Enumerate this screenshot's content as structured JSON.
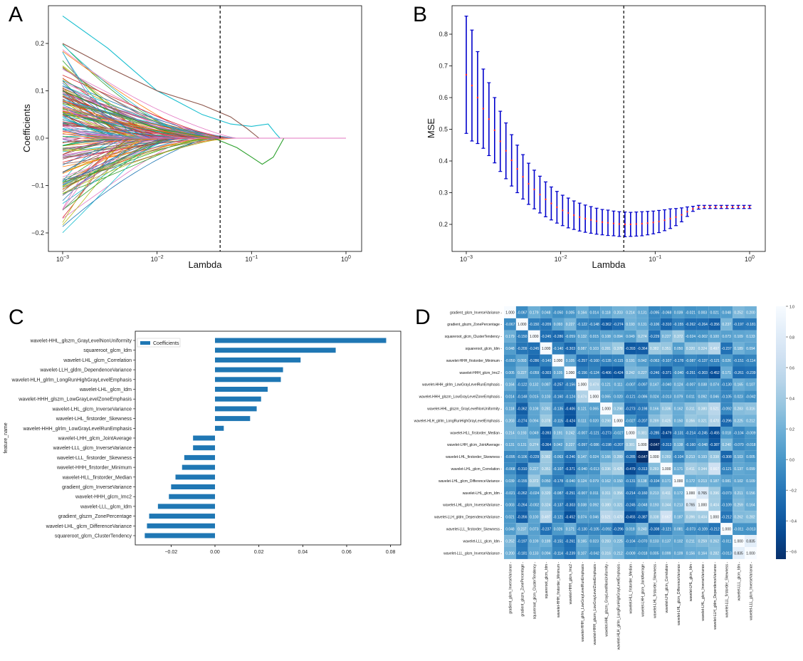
{
  "panel_labels": [
    "A",
    "B",
    "C",
    "D"
  ],
  "chart_data": [
    {
      "panel": "A",
      "type": "line",
      "xscale": "log",
      "xlabel": "Lambda",
      "ylabel": "Coefficients",
      "xlim": [
        0.001,
        1
      ],
      "ylim": [
        -0.22,
        0.26
      ],
      "xticks": [
        "10^-3",
        "10^-2",
        "10^-1",
        "10^0"
      ],
      "yticks": [
        "-0.2",
        "-0.1",
        "0.0",
        "0.1",
        "0.2"
      ],
      "vline_lambda": 0.0465,
      "series_count": 180,
      "highlight_series": [
        {
          "color": "#17becf",
          "points": [
            [
              0.001,
              0.258
            ],
            [
              0.003,
              0.19
            ],
            [
              0.01,
              0.1
            ],
            [
              0.03,
              0.05
            ],
            [
              0.06,
              0.03
            ],
            [
              0.1,
              0.025
            ],
            [
              0.15,
              0.03
            ],
            [
              0.18,
              0.01
            ],
            [
              0.2,
              0.0
            ]
          ]
        },
        {
          "color": "#2ca02c",
          "points": [
            [
              0.001,
              0.1
            ],
            [
              0.003,
              0.06
            ],
            [
              0.01,
              0.02
            ],
            [
              0.04,
              0.0
            ],
            [
              0.07,
              -0.02
            ],
            [
              0.1,
              -0.04
            ],
            [
              0.13,
              -0.055
            ],
            [
              0.17,
              -0.04
            ],
            [
              0.22,
              0.0
            ]
          ]
        },
        {
          "color": "#8c564b",
          "points": [
            [
              0.001,
              0.2
            ],
            [
              0.003,
              0.15
            ],
            [
              0.01,
              0.1
            ],
            [
              0.03,
              0.07
            ],
            [
              0.06,
              0.045
            ],
            [
              0.09,
              0.02
            ],
            [
              0.12,
              0.0
            ]
          ]
        },
        {
          "color": "#e377c2",
          "points": [
            [
              0.001,
              0.0
            ],
            [
              1,
              0.0
            ]
          ]
        }
      ]
    },
    {
      "panel": "B",
      "type": "line",
      "xscale": "log",
      "xlabel": "Lambda",
      "ylabel": "MSE",
      "xlim": [
        0.001,
        1
      ],
      "ylim": [
        0.15,
        0.88
      ],
      "xticks": [
        "10^-3",
        "10^-2",
        "10^-1",
        "10^0"
      ],
      "yticks": [
        "0.2",
        "0.3",
        "0.4",
        "0.5",
        "0.6",
        "0.7",
        "0.8"
      ],
      "vline_lambda": 0.0465,
      "lambda_log10_start": -3,
      "lambda_log10_step": 0.06,
      "mse": [
        0.672,
        0.638,
        0.6,
        0.565,
        0.532,
        0.497,
        0.462,
        0.432,
        0.402,
        0.375,
        0.35,
        0.328,
        0.31,
        0.294,
        0.279,
        0.266,
        0.254,
        0.244,
        0.236,
        0.229,
        0.223,
        0.218,
        0.214,
        0.21,
        0.207,
        0.205,
        0.203,
        0.201,
        0.2,
        0.2,
        0.201,
        0.202,
        0.204,
        0.206,
        0.209,
        0.213,
        0.218,
        0.223,
        0.23,
        0.24,
        0.249,
        0.254,
        0.255,
        0.255,
        0.255,
        0.255,
        0.255,
        0.255,
        0.255,
        0.255,
        0.255
      ],
      "std": [
        0.185,
        0.175,
        0.145,
        0.125,
        0.115,
        0.103,
        0.095,
        0.088,
        0.081,
        0.075,
        0.07,
        0.065,
        0.061,
        0.058,
        0.055,
        0.052,
        0.05,
        0.048,
        0.047,
        0.045,
        0.044,
        0.043,
        0.042,
        0.041,
        0.04,
        0.04,
        0.039,
        0.039,
        0.039,
        0.038,
        0.038,
        0.038,
        0.037,
        0.036,
        0.035,
        0.033,
        0.031,
        0.027,
        0.022,
        0.015,
        0.008,
        0.006,
        0.005,
        0.005,
        0.005,
        0.005,
        0.005,
        0.005,
        0.005,
        0.005,
        0.005
      ]
    },
    {
      "panel": "C",
      "type": "bar",
      "orientation": "horizontal",
      "ylabel": "feature_name",
      "legend": "Coefficients",
      "xlim": [
        -0.04,
        0.083
      ],
      "xticks": [
        "-0.02",
        "0.00",
        "0.02",
        "0.04",
        "0.06",
        "0.08"
      ],
      "categories": [
        "wavelet-HHL_glszm_GrayLevelNonUniformity",
        "squareroot_glcm_Idm",
        "wavelet-LHL_glcm_Correlation",
        "wavelet-LLH_gldm_DependenceVariance",
        "wavelet-HLH_glrlm_LongRunHighGrayLevelEmphasis",
        "wavelet-LHL_glcm_Idm",
        "wavelet-HHH_glszm_LowGrayLevelZoneEmphasis",
        "wavelet-LHL_glcm_InverseVariance",
        "wavelet-LHL_firstorder_Skewness",
        "wavelet-HHH_glrlm_LowGrayLevelRunEmphasis",
        "wavelet-LHH_glcm_JointAverage",
        "wavelet-LLL_glcm_InverseVariance",
        "wavelet-LLL_firstorder_Skewness",
        "wavelet-HHH_firstorder_Minimum",
        "wavelet-HLL_firstorder_Median",
        "gradient_glcm_InverseVariance",
        "wavelet-HHH_glcm_Imc2",
        "wavelet-LLL_glcm_Idm",
        "gradient_glszm_ZonePercentage",
        "wavelet-LHL_glcm_DifferenceVariance",
        "squareroot_glcm_ClusterTendency"
      ],
      "values": [
        0.078,
        0.055,
        0.039,
        0.031,
        0.03,
        0.024,
        0.021,
        0.019,
        0.016,
        0.004,
        -0.01,
        -0.01,
        -0.014,
        -0.015,
        -0.018,
        -0.02,
        -0.021,
        -0.026,
        -0.03,
        -0.031,
        -0.032
      ]
    },
    {
      "panel": "D",
      "type": "heatmap",
      "labels": [
        "gradient_glcm_InverseVariance",
        "gradient_glszm_ZonePercentage",
        "squareroot_glcm_ClusterTendency",
        "squareroot_glcm_Idm",
        "wavelet-HHH_firstorder_Minimum",
        "wavelet-HHH_glcm_Imc2",
        "wavelet-HHH_glrlm_LowGrayLevelRunEmphasis",
        "wavelet-HHH_glszm_LowGrayLevelZoneEmphasis",
        "wavelet-HHL_glszm_GrayLevelNonUniformity",
        "wavelet-HLH_glrlm_LongRunHighGrayLevelEmphasis",
        "wavelet-HLL_firstorder_Median",
        "wavelet-LHH_glcm_JointAverage",
        "wavelet-LHL_firstorder_Skewness",
        "wavelet-LHL_glcm_Correlation",
        "wavelet-LHL_glcm_DifferenceVariance",
        "wavelet-LHL_glcm_Idm",
        "wavelet-LHL_glcm_InverseVariance",
        "wavelet-LLH_gldm_DependenceVariance",
        "wavelet-LLL_firstorder_Skewness",
        "wavelet-LLL_glcm_Idm",
        "wavelet-LLL_glcm_InverseVariance"
      ],
      "colorbar_ticks": [
        "1.0",
        "0.8",
        "0.6",
        "0.4",
        "0.2",
        "0.0",
        "-0.2",
        "-0.4",
        "-0.6"
      ],
      "vmin": -0.65,
      "vmax": 1.0,
      "matrix": [
        [
          1.0,
          -0.067,
          0.179,
          0.048,
          -0.05,
          0.005,
          0.164,
          0.014,
          0.118,
          0.203,
          0.214,
          0.131,
          -0.095,
          -0.068,
          0.039,
          -0.021,
          0.003,
          0.021,
          0.048,
          0.252,
          0.2
        ],
        [
          -0.067,
          1.0,
          -0.15,
          -0.209,
          0.093,
          0.227,
          -0.122,
          -0.148,
          -0.362,
          -0.274,
          0.193,
          0.131,
          -0.106,
          -0.31,
          -0.155,
          -0.262,
          -0.264,
          -0.356,
          0.237,
          -0.197,
          -0.181
        ],
        [
          0.179,
          -0.15,
          1.0,
          -0.245,
          -0.286,
          -0.059,
          0.132,
          0.015,
          0.108,
          0.094,
          0.049,
          0.274,
          -0.229,
          0.227,
          0.372,
          -0.024,
          -0.002,
          0.1,
          0.073,
          0.109,
          0.133
        ],
        [
          0.048,
          -0.209,
          -0.245,
          1.0,
          -0.14,
          -0.303,
          0.087,
          0.103,
          0.281,
          0.378,
          -0.393,
          -0.364,
          0.382,
          0.351,
          0.05,
          0.32,
          0.324,
          0.497,
          -0.237,
          0.189,
          0.094
        ],
        [
          -0.05,
          0.093,
          -0.286,
          -0.14,
          1.0,
          0.105,
          -0.257,
          -0.16,
          -0.135,
          -0.115,
          0.191,
          0.042,
          -0.063,
          -0.107,
          -0.178,
          -0.087,
          -0.137,
          -0.121,
          0.026,
          -0.151,
          -0.114
        ],
        [
          0.005,
          0.227,
          -0.059,
          -0.303,
          0.105,
          1.0,
          -0.156,
          -0.124,
          -0.406,
          -0.424,
          0.242,
          0.227,
          -0.246,
          -0.371,
          -0.04,
          -0.251,
          -0.303,
          -0.452,
          0.171,
          -0.261,
          -0.239
        ],
        [
          0.164,
          -0.122,
          0.132,
          0.087,
          -0.257,
          -0.156,
          1.0,
          0.474,
          0.121,
          0.111,
          -0.007,
          -0.097,
          0.147,
          -0.04,
          0.124,
          -0.007,
          0.038,
          0.074,
          -0.13,
          0.165,
          0.107
        ],
        [
          0.014,
          -0.148,
          0.015,
          0.103,
          -0.16,
          -0.124,
          0.474,
          1.0,
          0.065,
          0.02,
          -0.121,
          -0.086,
          0.024,
          -0.013,
          0.079,
          0.011,
          0.092,
          0.046,
          -0.105,
          0.023,
          -0.042
        ],
        [
          0.118,
          -0.362,
          0.108,
          0.281,
          -0.135,
          -0.406,
          0.121,
          0.065,
          1.0,
          0.298,
          -0.273,
          -0.198,
          0.166,
          0.336,
          0.162,
          0.311,
          0.38,
          0.521,
          -0.092,
          0.283,
          0.316
        ],
        [
          0.203,
          -0.274,
          0.094,
          0.378,
          -0.115,
          -0.424,
          0.111,
          0.02,
          0.298,
          1.0,
          -0.027,
          -0.207,
          0.289,
          0.425,
          0.15,
          0.356,
          0.321,
          0.47,
          -0.296,
          0.225,
          0.212
        ],
        [
          0.214,
          0.193,
          0.049,
          -0.393,
          0.191,
          0.242,
          -0.007,
          -0.121,
          -0.273,
          -0.027,
          1.0,
          0.381,
          -0.285,
          -0.479,
          -0.131,
          -0.214,
          -0.245,
          -0.455,
          0.018,
          -0.104,
          -0.009
        ],
        [
          0.131,
          0.131,
          0.274,
          -0.364,
          0.042,
          0.227,
          -0.097,
          -0.086,
          -0.198,
          -0.207,
          0.381,
          1.0,
          -0.647,
          -0.313,
          0.138,
          -0.16,
          -0.048,
          -0.387,
          0.24,
          -0.07,
          -0.018
        ],
        [
          -0.095,
          -0.106,
          -0.229,
          0.382,
          -0.063,
          -0.246,
          0.147,
          0.024,
          0.166,
          0.289,
          -0.285,
          -0.647,
          1.0,
          0.283,
          -0.104,
          0.213,
          0.193,
          0.338,
          -0.308,
          0.103,
          0.005
        ],
        [
          -0.068,
          -0.31,
          0.227,
          0.351,
          -0.107,
          -0.371,
          -0.04,
          -0.013,
          0.336,
          0.425,
          -0.479,
          -0.313,
          0.283,
          1.0,
          0.171,
          0.411,
          0.344,
          0.667,
          -0.121,
          0.137,
          0.099
        ],
        [
          0.039,
          -0.155,
          0.372,
          0.05,
          -0.178,
          -0.04,
          0.124,
          0.079,
          0.162,
          0.15,
          -0.131,
          0.138,
          -0.104,
          0.171,
          1.0,
          0.172,
          0.213,
          0.187,
          0.081,
          0.102,
          0.109
        ],
        [
          -0.021,
          -0.262,
          -0.024,
          0.32,
          -0.087,
          -0.251,
          -0.007,
          0.011,
          0.311,
          0.356,
          -0.214,
          -0.16,
          0.213,
          0.411,
          0.172,
          1.0,
          0.765,
          0.396,
          -0.073,
          0.211,
          0.156
        ],
        [
          0.003,
          -0.264,
          -0.002,
          0.324,
          -0.137,
          -0.303,
          0.038,
          0.092,
          0.38,
          0.321,
          -0.245,
          -0.048,
          0.193,
          0.344,
          0.213,
          0.765,
          1.0,
          0.404,
          -0.109,
          0.259,
          0.164
        ],
        [
          0.021,
          -0.356,
          0.1,
          0.497,
          -0.121,
          -0.452,
          0.074,
          0.046,
          0.521,
          0.47,
          -0.455,
          -0.387,
          0.338,
          0.667,
          0.187,
          0.396,
          0.404,
          1.0,
          -0.212,
          0.262,
          0.282
        ],
        [
          0.048,
          0.237,
          0.073,
          -0.237,
          0.026,
          0.171,
          -0.13,
          -0.105,
          -0.092,
          -0.296,
          0.018,
          0.24,
          -0.308,
          -0.121,
          0.081,
          -0.073,
          -0.109,
          -0.212,
          1.0,
          -0.011,
          -0.013
        ],
        [
          0.252,
          -0.197,
          0.109,
          0.189,
          -0.151,
          -0.261,
          0.165,
          0.023,
          0.283,
          0.225,
          -0.104,
          -0.07,
          0.103,
          0.137,
          0.102,
          0.211,
          0.259,
          0.262,
          -0.011,
          1.0,
          0.835
        ],
        [
          0.2,
          -0.181,
          0.133,
          0.094,
          -0.114,
          -0.239,
          0.107,
          -0.042,
          0.316,
          0.212,
          -0.009,
          -0.018,
          0.005,
          0.099,
          0.109,
          0.156,
          0.164,
          0.282,
          -0.013,
          0.835,
          1.0
        ]
      ]
    }
  ]
}
